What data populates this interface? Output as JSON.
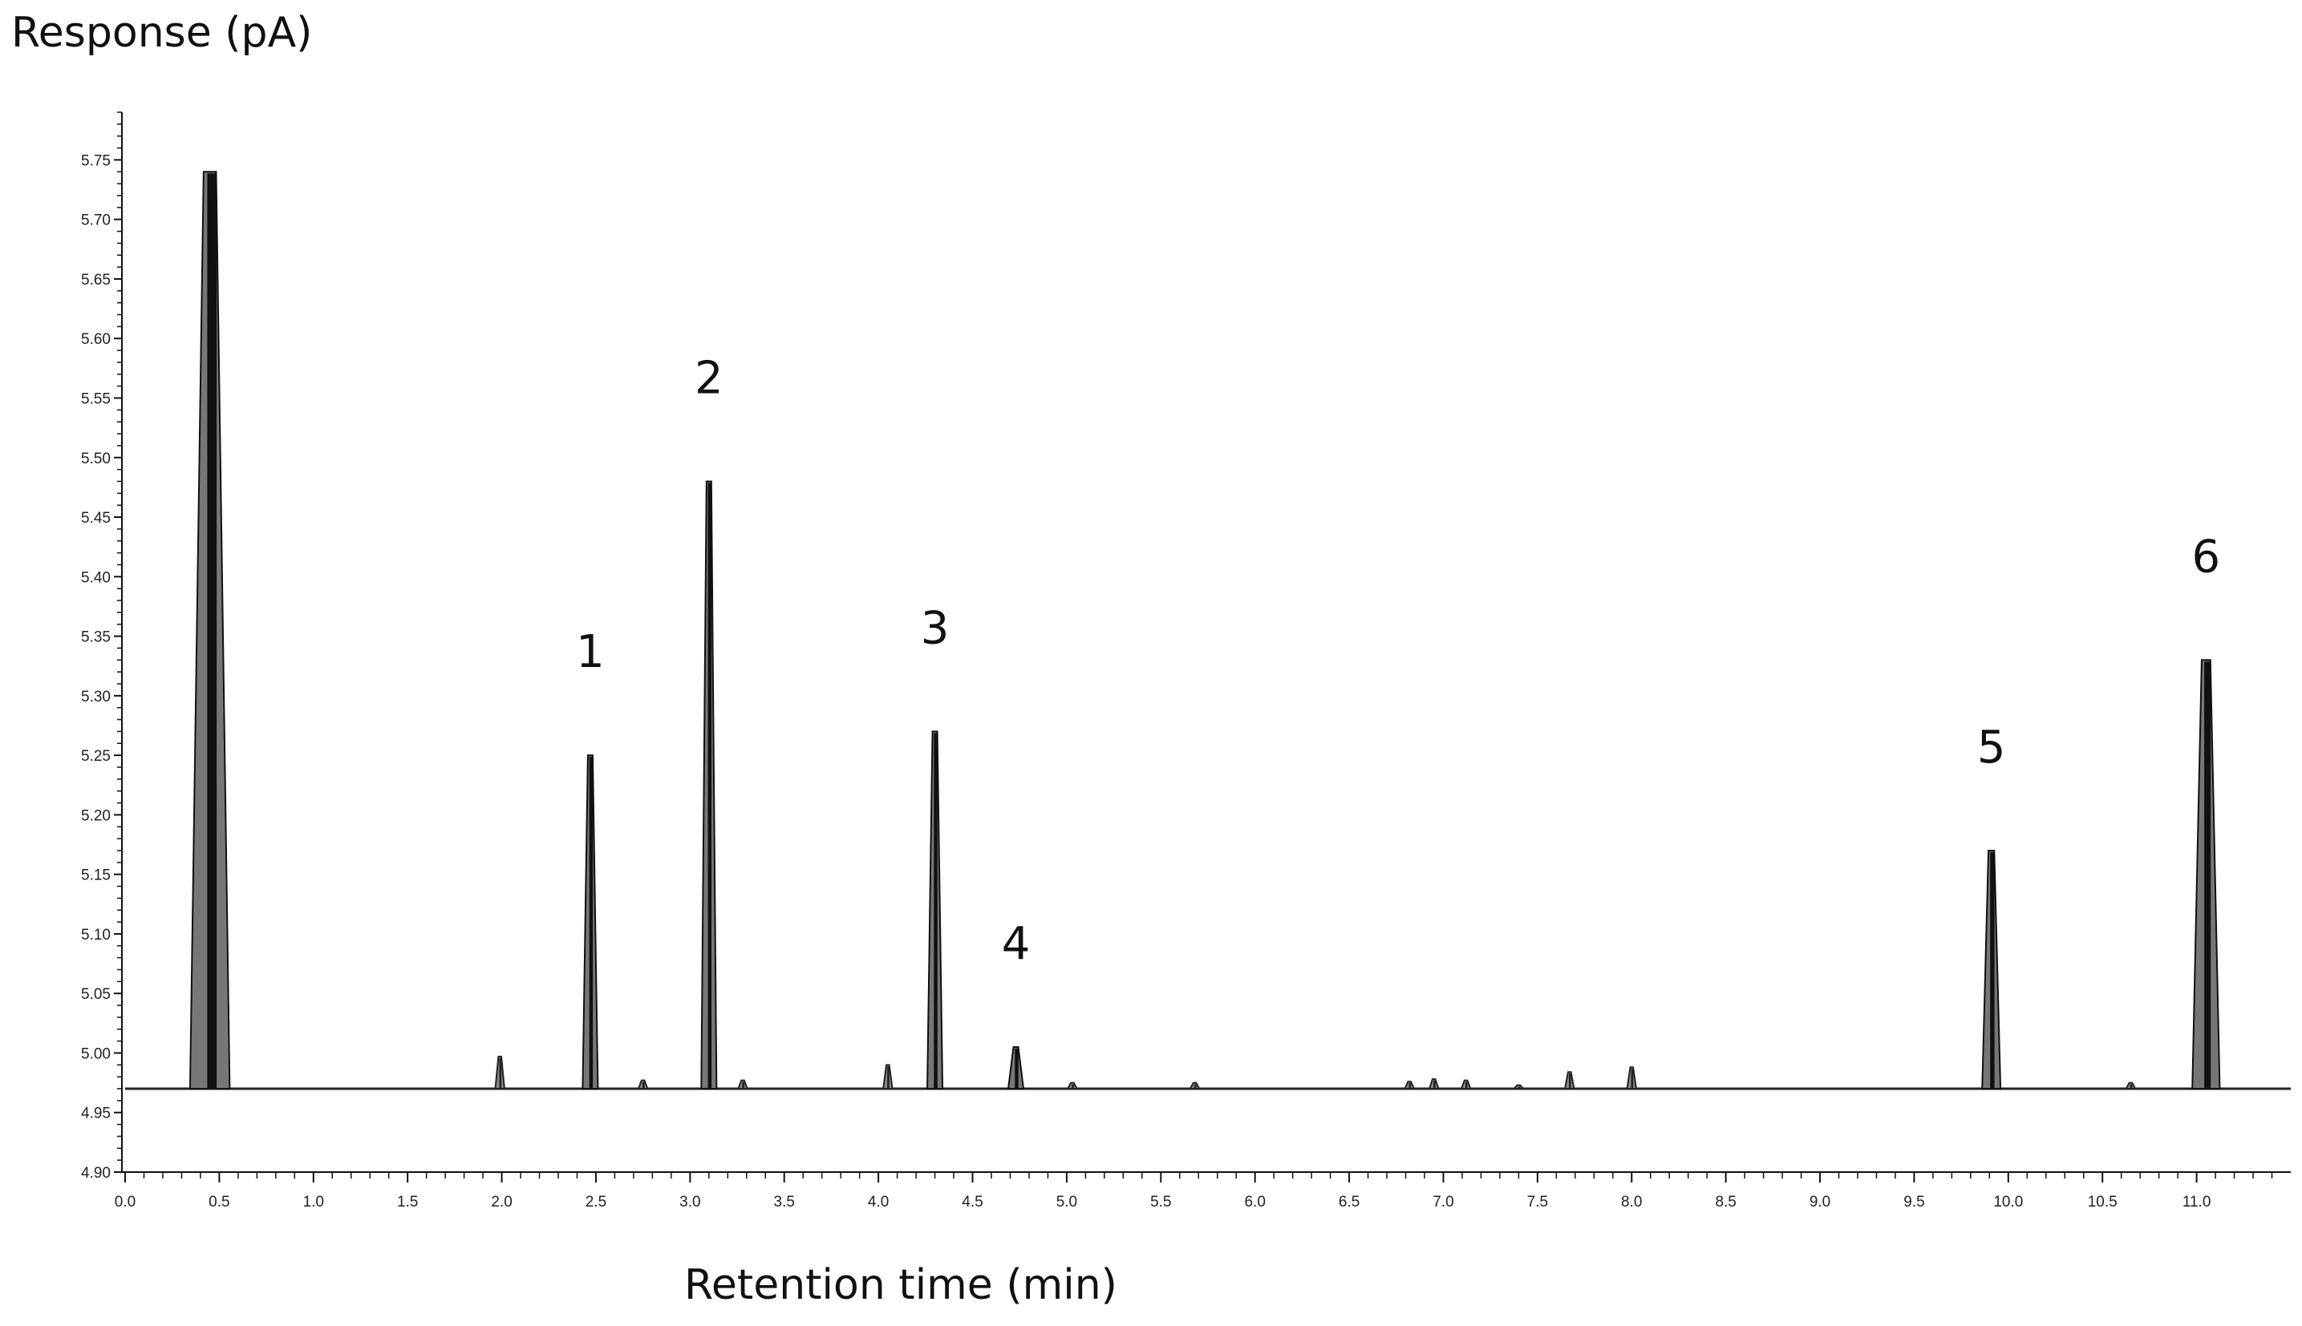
{
  "chart_data": {
    "type": "line",
    "ylabel": "Response (pA)",
    "xlabel": "Retention time (min)",
    "xlim": [
      0.0,
      11.5
    ],
    "ylim": [
      4.9,
      5.79
    ],
    "x_ticks": [
      "0.0",
      "0.5",
      "1.0",
      "1.5",
      "2.0",
      "2.5",
      "3.0",
      "3.5",
      "4.0",
      "4.5",
      "5.0",
      "5.5",
      "6.0",
      "6.5",
      "7.0",
      "7.5",
      "8.0",
      "8.5",
      "9.0",
      "9.5",
      "10.0",
      "10.5",
      "11.0"
    ],
    "y_ticks": [
      "4.90",
      "4.95",
      "5.00",
      "5.05",
      "5.10",
      "5.15",
      "5.20",
      "5.25",
      "5.30",
      "5.35",
      "5.40",
      "5.45",
      "5.50",
      "5.55",
      "5.60",
      "5.65",
      "5.70",
      "5.75"
    ],
    "baseline": 4.97,
    "peaks": [
      {
        "x": 0.45,
        "y": 5.74,
        "label": ""
      },
      {
        "x": 2.47,
        "y": 5.25,
        "label": "1"
      },
      {
        "x": 3.1,
        "y": 5.48,
        "label": "2"
      },
      {
        "x": 4.3,
        "y": 5.27,
        "label": "3"
      },
      {
        "x": 4.73,
        "y": 5.005,
        "label": "4"
      },
      {
        "x": 9.91,
        "y": 5.17,
        "label": "5"
      },
      {
        "x": 11.05,
        "y": 5.33,
        "label": "6"
      }
    ],
    "minor_peaks": [
      {
        "x": 1.99,
        "y": 4.997
      },
      {
        "x": 2.75,
        "y": 4.977
      },
      {
        "x": 3.28,
        "y": 4.977
      },
      {
        "x": 4.05,
        "y": 4.99
      },
      {
        "x": 5.03,
        "y": 4.975
      },
      {
        "x": 5.68,
        "y": 4.975
      },
      {
        "x": 6.82,
        "y": 4.976
      },
      {
        "x": 6.95,
        "y": 4.978
      },
      {
        "x": 7.12,
        "y": 4.977
      },
      {
        "x": 7.4,
        "y": 4.973
      },
      {
        "x": 7.67,
        "y": 4.984
      },
      {
        "x": 8.0,
        "y": 4.988
      },
      {
        "x": 10.65,
        "y": 4.975
      }
    ]
  }
}
